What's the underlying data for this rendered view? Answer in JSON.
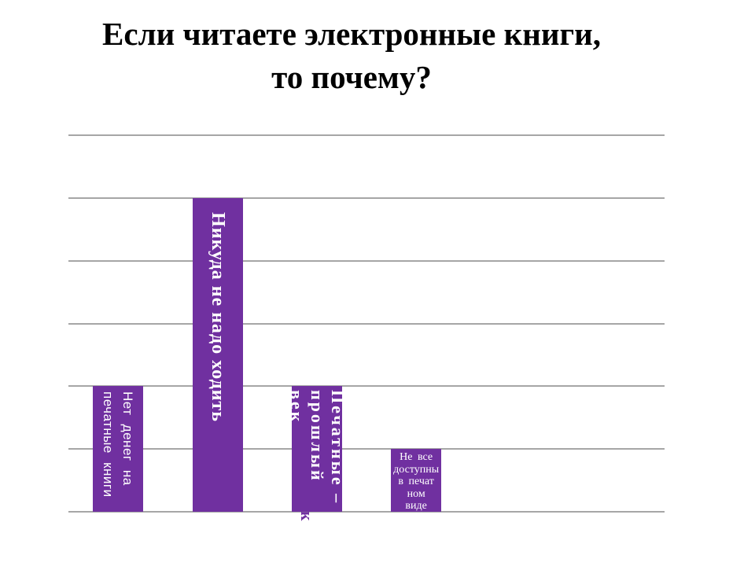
{
  "slide": {
    "title": "Если читаете электронные книги,\nто почему?"
  },
  "chart_data": {
    "type": "bar",
    "title": "Если читаете электронные книги, то почему?",
    "categories": [
      "Нет денег на печатные книги",
      "Никуда не надо ходить",
      "Печатные – прошлый век",
      "Не все доступны в печатном виде"
    ],
    "values": [
      2,
      5,
      2,
      1
    ],
    "xlabel": "",
    "ylabel": "",
    "ylim": [
      0,
      6
    ],
    "gridline_count": 7,
    "grid": true,
    "legend": false,
    "axis_tick_labels_visible": false,
    "bar_color": "#7030A0",
    "gridline_color": "#A6A6A6",
    "label_color": "#FFFFFF",
    "category_slots": 6,
    "bars": [
      {
        "label": "Нет денег на\nпечатные книги",
        "value": 2,
        "label_orientation": "vertical",
        "label_font": "sans",
        "label_size": 17,
        "label_letter_spacing": 0.5,
        "label_pad": 7,
        "label_overflow": false
      },
      {
        "label": "Никуда не надо ходить",
        "value": 5,
        "label_orientation": "vertical",
        "label_font": "serif-bold",
        "label_size": 24,
        "label_letter_spacing": 1,
        "label_pad": 18,
        "label_overflow": false
      },
      {
        "label": "Печатные –\nпрошлый век",
        "value": 2,
        "label_orientation": "vertical",
        "label_font": "serif-bold",
        "label_size": 22,
        "label_letter_spacing": 3,
        "label_pad": 5,
        "label_overflow": true
      },
      {
        "label": "Не все\nдоступны\nв печат\nном\nвиде",
        "value": 1,
        "label_orientation": "horizontal",
        "label_font": "serif",
        "label_size": 14,
        "label_letter_spacing": 0,
        "label_pad": 3,
        "label_overflow": false
      }
    ]
  }
}
